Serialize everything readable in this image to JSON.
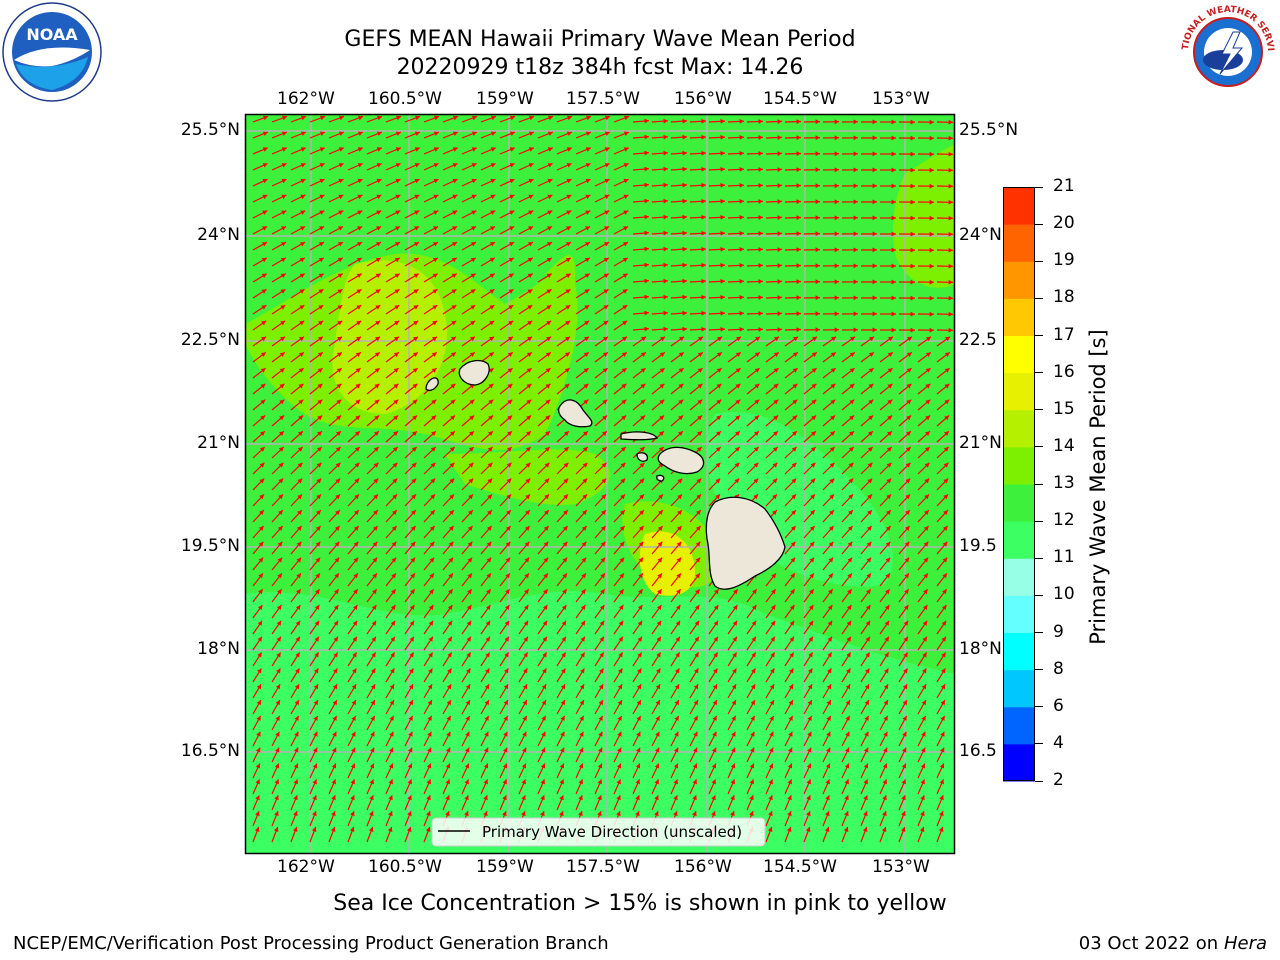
{
  "header": {
    "title_line1": "GEFS MEAN Hawaii Primary Wave Mean Period",
    "title_line2": "20220929 t18z 384h fcst   Max: 14.26"
  },
  "logos": {
    "left": {
      "text": "NOAA",
      "icon": "noaa-logo",
      "ring_text": "NATIONAL OCEANIC AND ATMOSPHERIC ADMINISTRATION · U.S. DEPARTMENT OF COMMERCE"
    },
    "right": {
      "icon": "national-weather-service-logo",
      "ring_text": "NATIONAL WEATHER SERVICE"
    }
  },
  "map": {
    "lon_labels": [
      "162°W",
      "160.5°W",
      "159°W",
      "157.5°W",
      "156°W",
      "154.5°W",
      "153°W"
    ],
    "lat_labels_left": [
      "25.5°N",
      "24°N",
      "22.5°N",
      "21°N",
      "19.5°N",
      "18°N",
      "16.5°N"
    ],
    "lat_labels_right": [
      "25.5°N",
      "24°N",
      "22.5",
      "21°N",
      "19.5",
      "18°N",
      "16.5"
    ],
    "legend_label": "Primary Wave Direction (unscaled)",
    "colors": {
      "ocean_base": "#3cf03c",
      "ocean_light": "#3cff64",
      "band_12_13": "#7cf000",
      "band_13_14": "#b4f000",
      "band_14_15": "#e6f000",
      "land": "#ece7d8",
      "arrow": "#ff0000",
      "grid": "#b4b4b4"
    }
  },
  "colorbar": {
    "title": "Primary Wave Mean Period [s]",
    "levels": [
      "2",
      "4",
      "6",
      "8",
      "9",
      "10",
      "11",
      "12",
      "13",
      "14",
      "15",
      "16",
      "17",
      "18",
      "19",
      "20",
      "21"
    ],
    "colors": [
      "#0000ff",
      "#0064ff",
      "#00c8ff",
      "#00ffff",
      "#64ffff",
      "#96ffe6",
      "#3cff64",
      "#3cf03c",
      "#7cf000",
      "#b4f000",
      "#e6f000",
      "#ffff00",
      "#ffc800",
      "#ff9600",
      "#ff6400",
      "#ff3200",
      "#ff0000"
    ]
  },
  "footer": {
    "note": "Sea Ice Concentration > 15% is shown in pink to yellow",
    "left": "NCEP/EMC/Verification Post Processing Product Generation Branch",
    "date": "03 Oct 2022 on ",
    "machine": "Hera"
  }
}
